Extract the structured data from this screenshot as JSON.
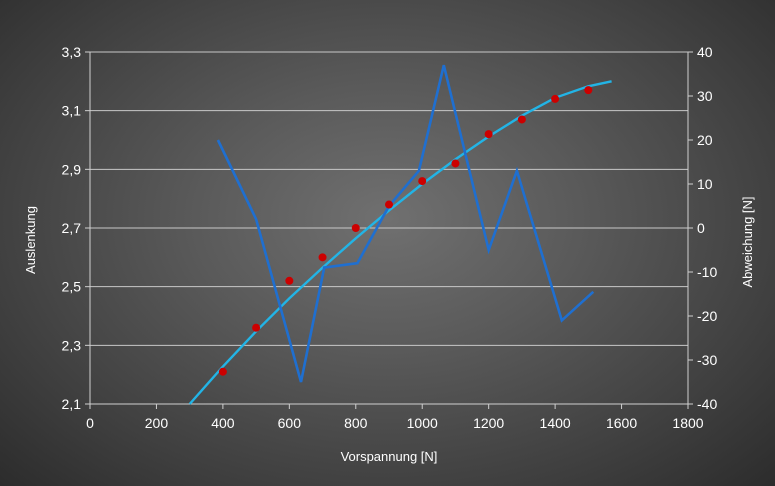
{
  "chart_data": {
    "type": "line",
    "title": "",
    "xlabel": "Vorspannung [N]",
    "ylabel": "Auslenkung",
    "y2label": "Abweichung [N]",
    "xlim": [
      0,
      1800
    ],
    "ylim": [
      2.1,
      3.3
    ],
    "y2lim": [
      -40,
      40
    ],
    "x_ticks": [
      "0",
      "200",
      "400",
      "600",
      "800",
      "1000",
      "1200",
      "1400",
      "1600",
      "1800"
    ],
    "y_ticks": [
      "2,1",
      "2,3",
      "2,5",
      "2,7",
      "2,9",
      "3,1",
      "3,3"
    ],
    "y2_ticks": [
      "-40",
      "-30",
      "-20",
      "-10",
      "0",
      "10",
      "20",
      "30",
      "40"
    ],
    "grid": "horizontal",
    "legend": "none",
    "series": [
      {
        "type": "scatter",
        "axis": "left",
        "color": "#cc0000",
        "x": [
          400,
          500,
          600,
          700,
          800,
          900,
          1000,
          1100,
          1200,
          1300,
          1400,
          1500
        ],
        "y": [
          2.21,
          2.36,
          2.52,
          2.6,
          2.7,
          2.78,
          2.86,
          2.92,
          3.02,
          3.07,
          3.14,
          3.17
        ]
      },
      {
        "type": "line",
        "axis": "left",
        "color": "#22b4e6",
        "x": [
          300,
          400,
          500,
          600,
          700,
          800,
          900,
          1000,
          1100,
          1200,
          1300,
          1400,
          1500,
          1570
        ],
        "y": [
          2.1,
          2.228,
          2.348,
          2.46,
          2.565,
          2.665,
          2.76,
          2.85,
          2.934,
          3.012,
          3.083,
          3.144,
          3.183,
          3.2
        ]
      },
      {
        "type": "line",
        "axis": "right",
        "color": "#1f6fd0",
        "x": [
          385,
          500,
          635,
          705,
          805,
          900,
          990,
          1065,
          1200,
          1285,
          1420,
          1515
        ],
        "y": [
          20,
          2,
          -35,
          -9,
          -8,
          5,
          13,
          37,
          -5,
          13,
          -21,
          -14.5
        ]
      }
    ]
  }
}
